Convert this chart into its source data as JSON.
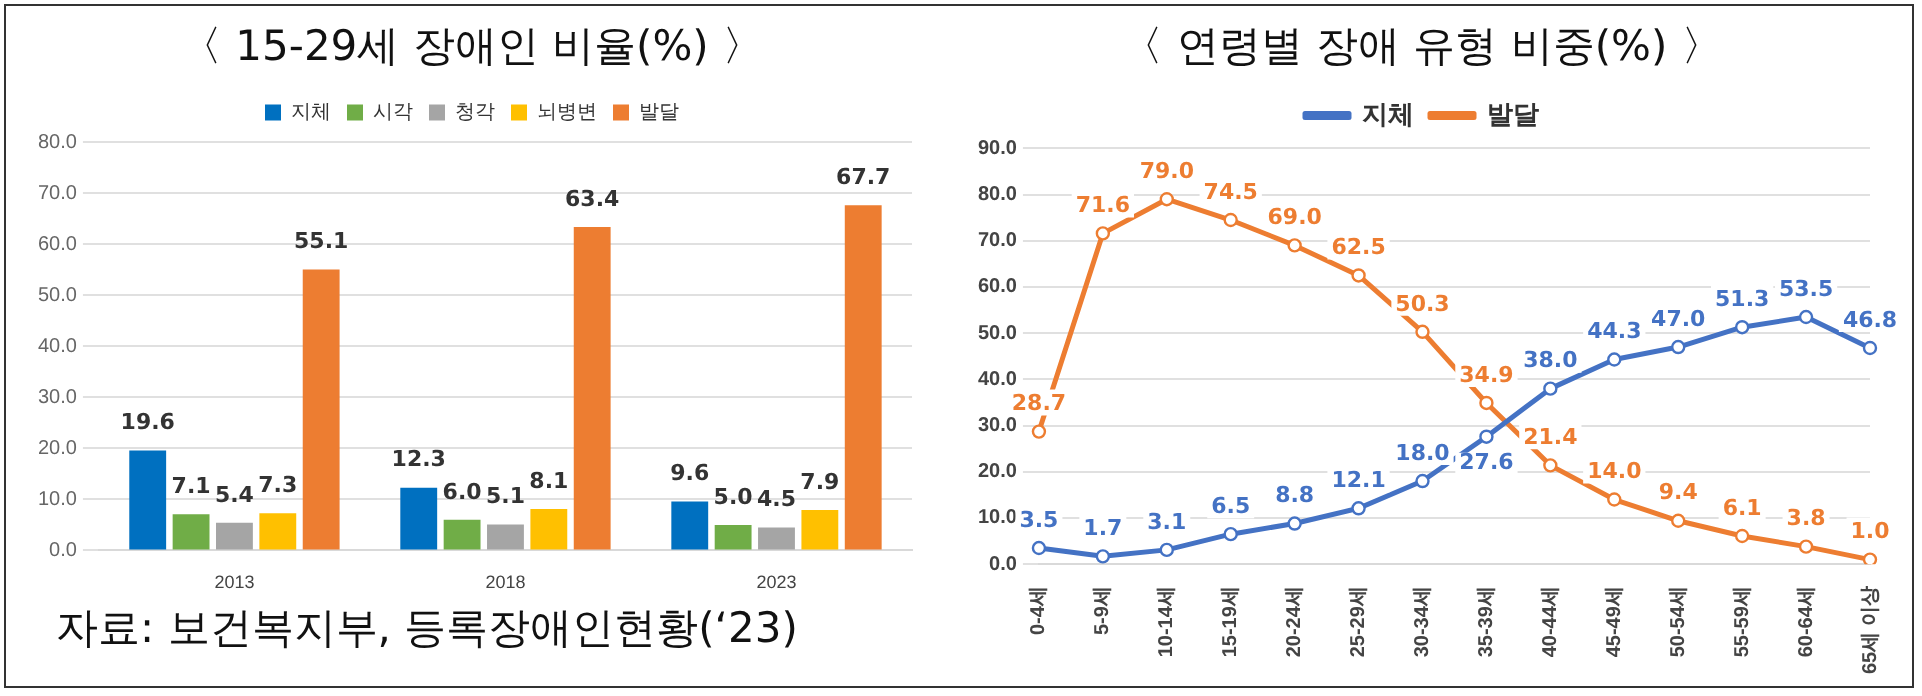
{
  "chart_data": [
    {
      "type": "bar",
      "title": "〈 15-29세 장애인 비율(%) 〉",
      "categories": [
        "2013",
        "2018",
        "2023"
      ],
      "series": [
        {
          "name": "지체",
          "color": "#0070c0",
          "values": [
            19.6,
            12.3,
            9.6
          ],
          "value_labels": [
            "19.6",
            "12.3",
            "9.6"
          ]
        },
        {
          "name": "시각",
          "color": "#70ad47",
          "values": [
            7.1,
            6.0,
            5.0
          ],
          "value_labels": [
            "7.1",
            "6.0",
            "5.0"
          ]
        },
        {
          "name": "청각",
          "color": "#a5a5a5",
          "values": [
            5.4,
            5.1,
            4.5
          ],
          "value_labels": [
            "5.4",
            "5.1",
            "4.5"
          ]
        },
        {
          "name": "뇌병변",
          "color": "#ffc000",
          "values": [
            7.3,
            8.1,
            7.9
          ],
          "value_labels": [
            "7.3",
            "8.1",
            "7.9"
          ]
        },
        {
          "name": "발달",
          "color": "#ed7d31",
          "values": [
            55.1,
            63.4,
            67.7
          ],
          "value_labels": [
            "55.1",
            "63.4",
            "67.7"
          ]
        }
      ],
      "ylim": [
        0,
        80
      ],
      "yticks": [
        {
          "value": 0,
          "label": "0.0"
        },
        {
          "value": 10,
          "label": "10.0"
        },
        {
          "value": 20,
          "label": "20.0"
        },
        {
          "value": 30,
          "label": "30.0"
        },
        {
          "value": 40,
          "label": "40.0"
        },
        {
          "value": 50,
          "label": "50.0"
        },
        {
          "value": 60,
          "label": "60.0"
        },
        {
          "value": 70,
          "label": "70.0"
        },
        {
          "value": 80,
          "label": "80.0"
        }
      ],
      "grid": "y",
      "legend": "top",
      "annotations": [
        "자료: 보건복지부, 등록장애인현황(‘23)"
      ]
    },
    {
      "type": "line",
      "title": "〈 연령별 장애 유형 비중(%) 〉",
      "categories": [
        "0-4세",
        "5-9세",
        "10-14세",
        "15-19세",
        "20-24세",
        "25-29세",
        "30-34세",
        "35-39세",
        "40-44세",
        "45-49세",
        "50-54세",
        "55-59세",
        "60-64세",
        "65세 이상"
      ],
      "series": [
        {
          "name": "지체",
          "color": "#4472c4",
          "values": [
            3.5,
            1.7,
            3.1,
            6.5,
            8.8,
            12.1,
            18.0,
            27.6,
            38.0,
            44.3,
            47.0,
            51.3,
            53.5,
            46.8
          ],
          "value_labels": [
            "3.5",
            "1.7",
            "3.1",
            "6.5",
            "8.8",
            "12.1",
            "18.0",
            "27.6",
            "38.0",
            "44.3",
            "47.0",
            "51.3",
            "53.5",
            "46.8"
          ]
        },
        {
          "name": "발달",
          "color": "#ed7d31",
          "values": [
            28.7,
            71.6,
            79.0,
            74.5,
            69.0,
            62.5,
            50.3,
            34.9,
            21.4,
            14.0,
            9.4,
            6.1,
            3.8,
            1.0
          ],
          "value_labels": [
            "28.7",
            "71.6",
            "79.0",
            "74.5",
            "69.0",
            "62.5",
            "50.3",
            "34.9",
            "21.4",
            "14.0",
            "9.4",
            "6.1",
            "3.8",
            "1.0"
          ]
        }
      ],
      "ylim": [
        0,
        90
      ],
      "yticks": [
        {
          "value": 0,
          "label": "0.0"
        },
        {
          "value": 10,
          "label": "10.0"
        },
        {
          "value": 20,
          "label": "20.0"
        },
        {
          "value": 30,
          "label": "30.0"
        },
        {
          "value": 40,
          "label": "40.0"
        },
        {
          "value": 50,
          "label": "50.0"
        },
        {
          "value": 60,
          "label": "60.0"
        },
        {
          "value": 70,
          "label": "70.0"
        },
        {
          "value": 80,
          "label": "80.0"
        },
        {
          "value": 90,
          "label": "90.0"
        }
      ],
      "grid": "y",
      "legend": "top",
      "marker": "circle",
      "line_style": "solid"
    }
  ]
}
